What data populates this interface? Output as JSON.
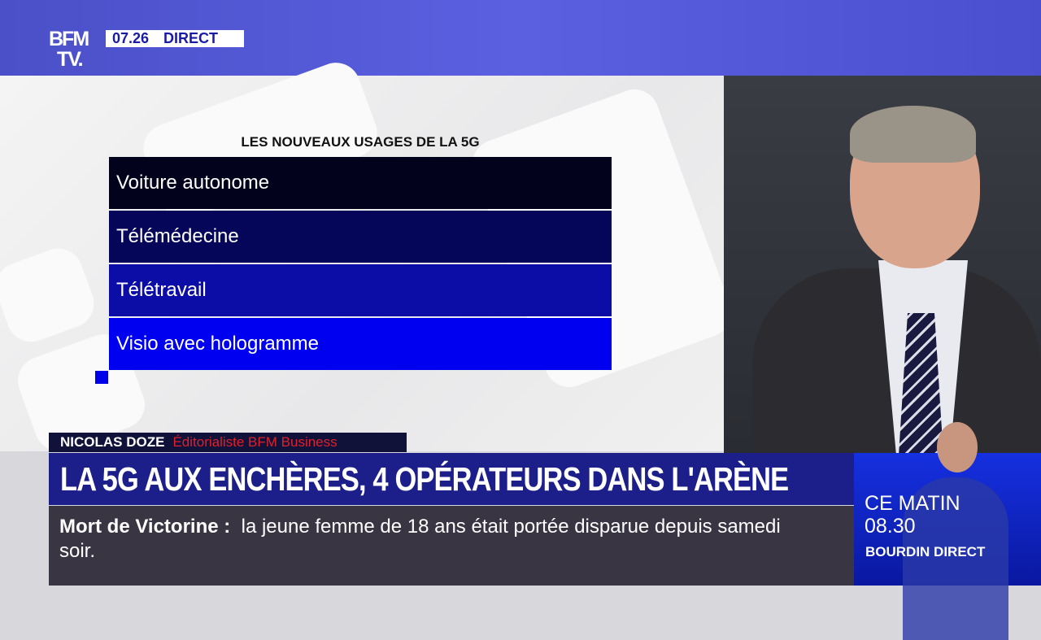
{
  "header": {
    "logo": "BFM TV.",
    "logo_line1": "BFM",
    "logo_line2": "TV.",
    "time": "07.26",
    "live_label": "DIRECT"
  },
  "graphic": {
    "title": "LES NOUVEAUX USAGES DE LA 5G",
    "items": [
      {
        "label": "Voiture autonome",
        "color": "#02021c"
      },
      {
        "label": "Télémédecine",
        "color": "#05055a"
      },
      {
        "label": "Télétravail",
        "color": "#0c0ca6"
      },
      {
        "label": "Visio avec hologramme",
        "color": "#0000f0"
      }
    ]
  },
  "lower_third": {
    "name": "NICOLAS DOZE",
    "role": "Éditorialiste BFM Business",
    "headline": "LA 5G AUX ENCHÈRES, 4 OPÉRATEURS DANS L'ARÈNE"
  },
  "ticker": {
    "topic": "Mort de Victorine",
    "separator": ":",
    "text": "la jeune femme de 18 ans était portée disparue depuis samedi soir."
  },
  "promo": {
    "line1": "CE MATIN",
    "line2": "08.30",
    "show": "BOURDIN DIRECT"
  }
}
